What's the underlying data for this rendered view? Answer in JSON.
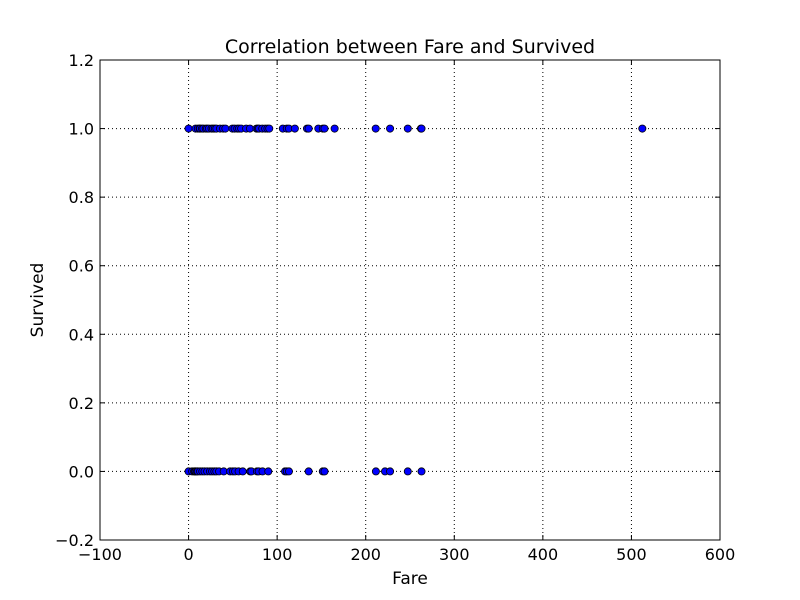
{
  "chart_data": {
    "type": "scatter",
    "title": "Correlation between Fare and Survived",
    "xlabel": "Fare",
    "ylabel": "Survived",
    "xlim": [
      -100,
      600
    ],
    "ylim": [
      -0.2,
      1.2
    ],
    "xticks": [
      -100,
      0,
      100,
      200,
      300,
      400,
      500,
      600
    ],
    "xtick_labels": [
      "−100",
      "0",
      "100",
      "200",
      "300",
      "400",
      "500",
      "600"
    ],
    "yticks": [
      -0.2,
      0.0,
      0.2,
      0.4,
      0.6,
      0.8,
      1.0,
      1.2
    ],
    "ytick_labels": [
      "−0.2",
      "0.0",
      "0.2",
      "0.4",
      "0.6",
      "0.8",
      "1.0",
      "1.2"
    ],
    "grid": true,
    "marker_color": "#0000ff",
    "series": [
      {
        "points": [
          {
            "x": 0,
            "y": 1
          },
          {
            "x": 7.9,
            "y": 1
          },
          {
            "x": 10.5,
            "y": 1
          },
          {
            "x": 12.5,
            "y": 1
          },
          {
            "x": 13,
            "y": 1
          },
          {
            "x": 15.2,
            "y": 1
          },
          {
            "x": 16.7,
            "y": 1
          },
          {
            "x": 19.5,
            "y": 1
          },
          {
            "x": 21,
            "y": 1
          },
          {
            "x": 23,
            "y": 1
          },
          {
            "x": 26,
            "y": 1
          },
          {
            "x": 27.7,
            "y": 1
          },
          {
            "x": 29.7,
            "y": 1
          },
          {
            "x": 31.4,
            "y": 1
          },
          {
            "x": 35.5,
            "y": 1
          },
          {
            "x": 39,
            "y": 1
          },
          {
            "x": 41.6,
            "y": 1
          },
          {
            "x": 49.5,
            "y": 1
          },
          {
            "x": 52,
            "y": 1
          },
          {
            "x": 55,
            "y": 1
          },
          {
            "x": 57,
            "y": 1
          },
          {
            "x": 59.4,
            "y": 1
          },
          {
            "x": 65,
            "y": 1
          },
          {
            "x": 69.3,
            "y": 1
          },
          {
            "x": 76.7,
            "y": 1
          },
          {
            "x": 78.3,
            "y": 1
          },
          {
            "x": 79.6,
            "y": 1
          },
          {
            "x": 83.2,
            "y": 1
          },
          {
            "x": 86.5,
            "y": 1
          },
          {
            "x": 89.1,
            "y": 1
          },
          {
            "x": 91.1,
            "y": 1
          },
          {
            "x": 106.4,
            "y": 1
          },
          {
            "x": 110.9,
            "y": 1
          },
          {
            "x": 113.3,
            "y": 1
          },
          {
            "x": 120,
            "y": 1
          },
          {
            "x": 133.7,
            "y": 1
          },
          {
            "x": 135.6,
            "y": 1
          },
          {
            "x": 146.5,
            "y": 1
          },
          {
            "x": 151.6,
            "y": 1
          },
          {
            "x": 153.5,
            "y": 1
          },
          {
            "x": 164.9,
            "y": 1
          },
          {
            "x": 211.3,
            "y": 1
          },
          {
            "x": 227.5,
            "y": 1
          },
          {
            "x": 247.5,
            "y": 1
          },
          {
            "x": 262.4,
            "y": 1
          },
          {
            "x": 263,
            "y": 1
          },
          {
            "x": 512.3,
            "y": 1
          },
          {
            "x": 0,
            "y": 0
          },
          {
            "x": 4,
            "y": 0
          },
          {
            "x": 6.2,
            "y": 0
          },
          {
            "x": 7.25,
            "y": 0
          },
          {
            "x": 8.05,
            "y": 0
          },
          {
            "x": 9.5,
            "y": 0
          },
          {
            "x": 10.5,
            "y": 0
          },
          {
            "x": 13,
            "y": 0
          },
          {
            "x": 15.5,
            "y": 0
          },
          {
            "x": 18,
            "y": 0
          },
          {
            "x": 21,
            "y": 0
          },
          {
            "x": 24.15,
            "y": 0
          },
          {
            "x": 26.55,
            "y": 0
          },
          {
            "x": 29.1,
            "y": 0
          },
          {
            "x": 31.3,
            "y": 0
          },
          {
            "x": 34.4,
            "y": 0
          },
          {
            "x": 39.7,
            "y": 0
          },
          {
            "x": 46.9,
            "y": 0
          },
          {
            "x": 50,
            "y": 0
          },
          {
            "x": 52.5,
            "y": 0
          },
          {
            "x": 56.5,
            "y": 0
          },
          {
            "x": 61.2,
            "y": 0
          },
          {
            "x": 69.55,
            "y": 0
          },
          {
            "x": 71,
            "y": 0
          },
          {
            "x": 77.3,
            "y": 0
          },
          {
            "x": 79.2,
            "y": 0
          },
          {
            "x": 83.5,
            "y": 0
          },
          {
            "x": 90,
            "y": 0
          },
          {
            "x": 108.9,
            "y": 0
          },
          {
            "x": 110.9,
            "y": 0
          },
          {
            "x": 113.3,
            "y": 0
          },
          {
            "x": 135.6,
            "y": 0
          },
          {
            "x": 151.55,
            "y": 0
          },
          {
            "x": 153.5,
            "y": 0
          },
          {
            "x": 211.5,
            "y": 0
          },
          {
            "x": 221.8,
            "y": 0
          },
          {
            "x": 227.5,
            "y": 0
          },
          {
            "x": 247.5,
            "y": 0
          },
          {
            "x": 263,
            "y": 0
          }
        ]
      }
    ]
  }
}
